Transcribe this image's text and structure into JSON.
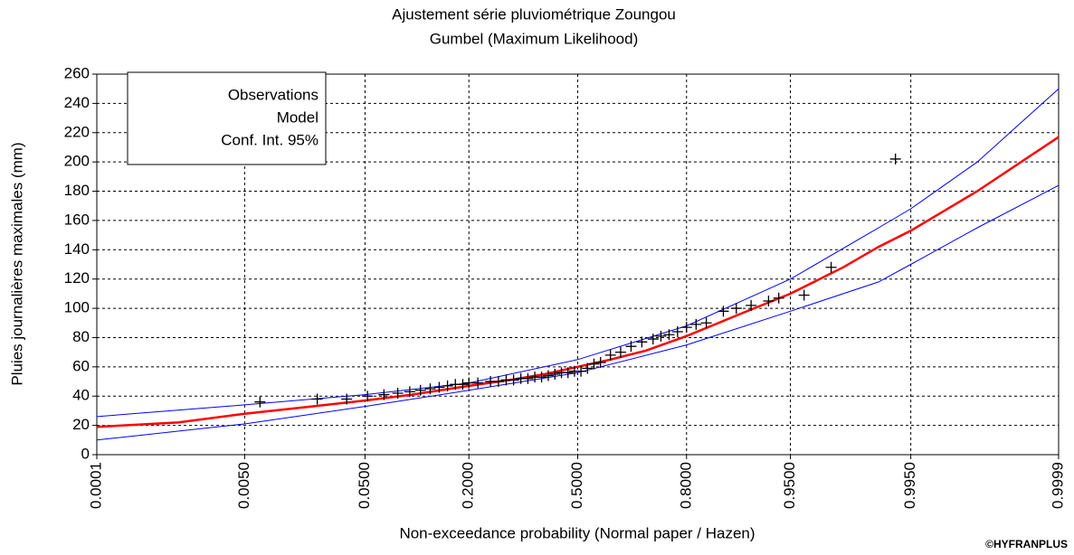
{
  "chart_data": {
    "type": "probability-plot",
    "title": "Ajustement série pluviométrique Zoungou",
    "subtitle": "Gumbel (Maximum Likelihood)",
    "x_label": "Non-exceedance probability (Normal paper / Hazen)",
    "y_label": "Pluies journalières maximales (mm)",
    "credit": "©HYFRANPLUS",
    "xscale": "normal",
    "xlim": [
      0.0001,
      0.9999
    ],
    "xticks": [
      {
        "value": 0.0001,
        "label": "0.0001"
      },
      {
        "value": 0.005,
        "label": "0.0050"
      },
      {
        "value": 0.05,
        "label": "0.0500"
      },
      {
        "value": 0.2,
        "label": "0.2000"
      },
      {
        "value": 0.5,
        "label": "0.5000"
      },
      {
        "value": 0.8,
        "label": "0.8000"
      },
      {
        "value": 0.95,
        "label": "0.9500"
      },
      {
        "value": 0.995,
        "label": "0.9950"
      },
      {
        "value": 0.9999,
        "label": "0.9999"
      }
    ],
    "ylim": [
      0,
      260
    ],
    "yticks": [
      0,
      20,
      40,
      60,
      80,
      100,
      120,
      140,
      160,
      180,
      200,
      220,
      240,
      260
    ],
    "grid": true,
    "legend": "upper left",
    "series": [
      {
        "name": "Observations",
        "kind": "marker",
        "color": "#000000",
        "x": [
          0.007,
          0.022,
          0.037,
          0.052,
          0.067,
          0.082,
          0.097,
          0.112,
          0.127,
          0.142,
          0.157,
          0.172,
          0.187,
          0.2,
          0.22,
          0.25,
          0.27,
          0.29,
          0.31,
          0.33,
          0.35,
          0.37,
          0.39,
          0.41,
          0.43,
          0.45,
          0.47,
          0.49,
          0.51,
          0.53,
          0.55,
          0.57,
          0.6,
          0.63,
          0.66,
          0.69,
          0.72,
          0.74,
          0.76,
          0.78,
          0.8,
          0.82,
          0.84,
          0.87,
          0.89,
          0.91,
          0.93,
          0.94,
          0.96,
          0.975,
          0.993
        ],
        "values": [
          36,
          38,
          38,
          40,
          41,
          42,
          43,
          44,
          45,
          46,
          47,
          48,
          48,
          49,
          49,
          50,
          50,
          51,
          51,
          52,
          52,
          53,
          53,
          54,
          55,
          56,
          56,
          57,
          57,
          59,
          62,
          63,
          68,
          70,
          74,
          77,
          79,
          81,
          82,
          84,
          87,
          89,
          90,
          98,
          100,
          102,
          105,
          107,
          109,
          128,
          202
        ]
      },
      {
        "name": "Model",
        "kind": "line",
        "color": "#ff0000",
        "x": [
          0.0001,
          0.001,
          0.005,
          0.02,
          0.05,
          0.1,
          0.2,
          0.3,
          0.4,
          0.5,
          0.6,
          0.7,
          0.8,
          0.9,
          0.95,
          0.98,
          0.99,
          0.995,
          0.999,
          0.9999
        ],
        "values": [
          19,
          22,
          28,
          33,
          37,
          41,
          47,
          51,
          55,
          60,
          65,
          71,
          81,
          97,
          110,
          128,
          142,
          153,
          180,
          217
        ]
      },
      {
        "name": "Conf. Int. 95%",
        "kind": "band",
        "color": "#0000ff",
        "x": [
          0.0001,
          0.005,
          0.05,
          0.2,
          0.5,
          0.8,
          0.95,
          0.99,
          0.995,
          0.999,
          0.9999
        ],
        "upper": [
          26,
          34,
          41,
          49,
          65,
          88,
          120,
          155,
          168,
          200,
          250
        ],
        "lower": [
          10,
          21,
          33,
          44,
          56,
          75,
          98,
          118,
          130,
          155,
          184
        ]
      }
    ]
  }
}
